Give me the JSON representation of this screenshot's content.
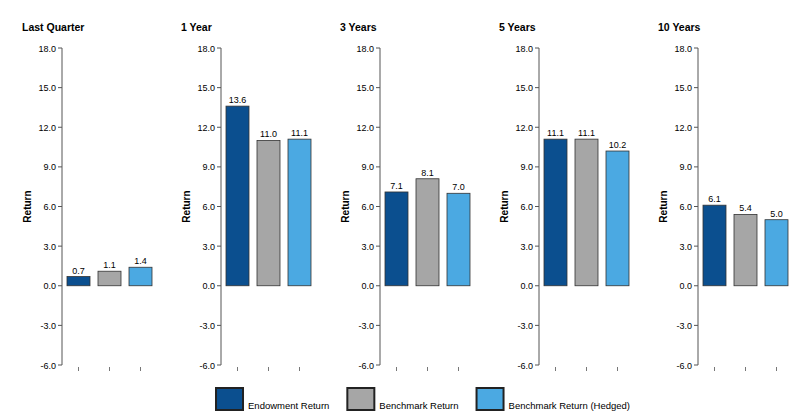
{
  "chart_data": {
    "type": "bar",
    "categories": [
      "Last Quarter",
      "1 Year",
      "3 Years",
      "5 Years",
      "10 Years"
    ],
    "ylabel": "Return",
    "series": [
      {
        "name": "Endowment Return",
        "color": "#0b4f8f",
        "values": [
          0.7,
          13.6,
          7.1,
          11.1,
          6.1
        ],
        "value_labels": [
          "0.7",
          "13.6",
          "7.1",
          "11.1",
          "6.1"
        ]
      },
      {
        "name": "Benchmark Return",
        "color": "#a6a6a6",
        "values": [
          1.1,
          11.0,
          8.1,
          11.1,
          5.4
        ],
        "value_labels": [
          "1.1",
          "11.0",
          "8.1",
          "11.1",
          "5.4"
        ]
      },
      {
        "name": "Benchmark Return (Hedged)",
        "color": "#4ba9e2",
        "values": [
          1.4,
          11.1,
          7.0,
          10.2,
          5.0
        ],
        "value_labels": [
          "1.4",
          "11.1",
          "7.0",
          "10.2",
          "5.0"
        ]
      }
    ],
    "ylim": [
      -6,
      18
    ],
    "yticks": [
      {
        "value": -6,
        "label": "-6.0"
      },
      {
        "value": -3,
        "label": "-3.0"
      },
      {
        "value": 0,
        "label": "0.0"
      },
      {
        "value": 3,
        "label": "3.0"
      },
      {
        "value": 6,
        "label": "6.0"
      },
      {
        "value": 9,
        "label": "9.0"
      },
      {
        "value": 12,
        "label": "12.0"
      },
      {
        "value": 15,
        "label": "15.0"
      },
      {
        "value": 18,
        "label": "18.0"
      }
    ],
    "grid": false,
    "legend": "bottom",
    "data_labels": true
  }
}
